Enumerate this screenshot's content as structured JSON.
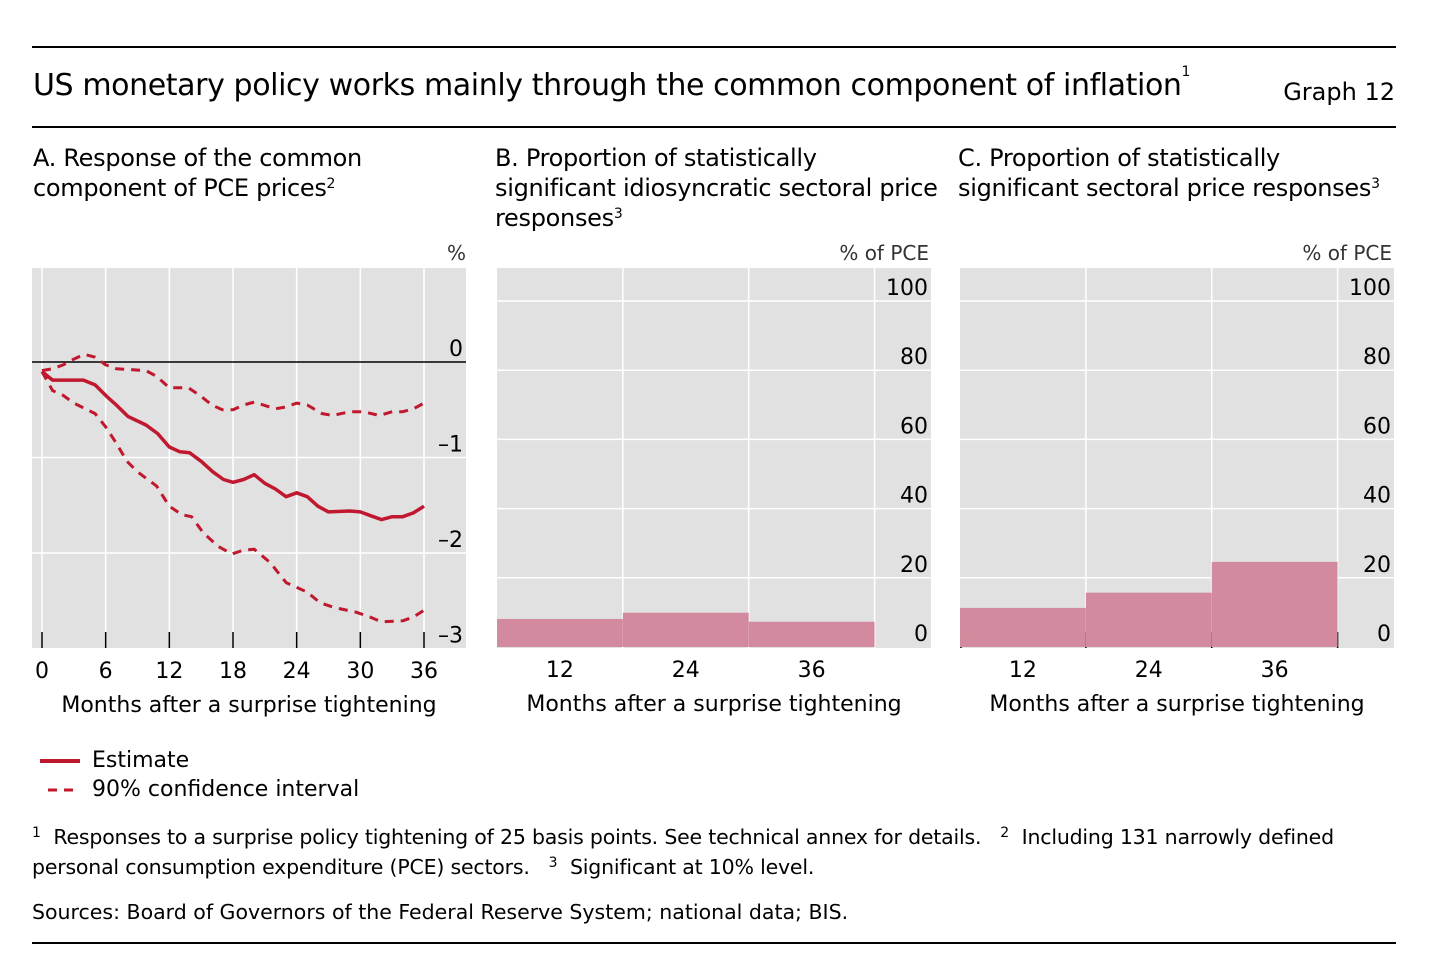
{
  "header": {
    "title": "US monetary policy works mainly through the common component of inflation",
    "title_note": "1",
    "graph_number": "Graph 12"
  },
  "legend": {
    "estimate": "Estimate",
    "ci": "90% confidence interval"
  },
  "footnotes": {
    "n1_mark": "1",
    "n1": "Responses to a surprise policy tightening of 25 basis points. See technical annex for details.",
    "n2_mark": "2",
    "n2": "Including 131 narrowly defined personal consumption expenditure (PCE) sectors.",
    "n3_mark": "3",
    "n3": "Significant at 10% level."
  },
  "sources": "Sources: Board of Governors of the Federal Reserve System; national data; BIS.",
  "colors": {
    "line": "#c0182e",
    "bar": "#d48a9e",
    "plot_bg": "#e1e1e1",
    "grid": "#ffffff"
  },
  "chart_data": [
    {
      "type": "line",
      "title": "A. Response of the common component of PCE prices",
      "title_note": "2",
      "unit": "%",
      "xlabel": "Months after a surprise tightening",
      "xlim": [
        0,
        36
      ],
      "ylim": [
        -3,
        1
      ],
      "xticks": [
        0,
        6,
        12,
        18,
        24,
        30,
        36
      ],
      "yticks": [
        0,
        -1,
        -2,
        -3
      ],
      "ytick_labels": [
        "0",
        "–1",
        "–2",
        "–3"
      ],
      "grid": true,
      "legend_position": "bottom-left",
      "series": [
        {
          "name": "Estimate",
          "style": "solid",
          "points": [
            [
              0,
              -0.1
            ],
            [
              1,
              -0.19
            ],
            [
              3.9,
              -0.19
            ],
            [
              5,
              -0.24
            ],
            [
              6.1,
              -0.36
            ],
            [
              7,
              -0.45
            ],
            [
              8.1,
              -0.57
            ],
            [
              9.8,
              -0.66
            ],
            [
              10.9,
              -0.75
            ],
            [
              12,
              -0.89
            ],
            [
              13,
              -0.94
            ],
            [
              13.9,
              -0.95
            ],
            [
              15,
              -1.04
            ],
            [
              16.1,
              -1.15
            ],
            [
              17.1,
              -1.23
            ],
            [
              18,
              -1.26
            ],
            [
              19,
              -1.23
            ],
            [
              20,
              -1.18
            ],
            [
              21,
              -1.27
            ],
            [
              22,
              -1.33
            ],
            [
              23,
              -1.41
            ],
            [
              24,
              -1.37
            ],
            [
              25,
              -1.41
            ],
            [
              26,
              -1.51
            ],
            [
              27,
              -1.57
            ],
            [
              29,
              -1.56
            ],
            [
              30,
              -1.57
            ],
            [
              31,
              -1.61
            ],
            [
              32,
              -1.65
            ],
            [
              33,
              -1.62
            ],
            [
              34,
              -1.62
            ],
            [
              35,
              -1.58
            ],
            [
              36,
              -1.51
            ]
          ]
        },
        {
          "name": "90% confidence interval",
          "style": "dashed",
          "points": [
            [
              0,
              -0.09
            ],
            [
              1,
              -0.07
            ],
            [
              2,
              -0.03
            ],
            [
              3,
              0.03
            ],
            [
              4,
              0.08
            ],
            [
              5,
              0.05
            ],
            [
              6,
              -0.03
            ],
            [
              7,
              -0.07
            ],
            [
              9.8,
              -0.09
            ],
            [
              10.8,
              -0.15
            ],
            [
              12,
              -0.27
            ],
            [
              13.8,
              -0.27
            ],
            [
              15,
              -0.36
            ],
            [
              16,
              -0.45
            ],
            [
              17,
              -0.5
            ],
            [
              18,
              -0.5
            ],
            [
              19,
              -0.45
            ],
            [
              20,
              -0.42
            ],
            [
              22,
              -0.49
            ],
            [
              23,
              -0.47
            ],
            [
              24,
              -0.43
            ],
            [
              25,
              -0.45
            ],
            [
              26.4,
              -0.54
            ],
            [
              27.4,
              -0.56
            ],
            [
              29,
              -0.52
            ],
            [
              30.3,
              -0.52
            ],
            [
              31.8,
              -0.56
            ],
            [
              33,
              -0.52
            ],
            [
              34,
              -0.52
            ],
            [
              35,
              -0.49
            ],
            [
              36,
              -0.43
            ]
          ]
        },
        {
          "name": "90% confidence interval",
          "style": "dashed",
          "points": [
            [
              0,
              -0.1
            ],
            [
              1,
              -0.3
            ],
            [
              2,
              -0.35
            ],
            [
              3,
              -0.43
            ],
            [
              5,
              -0.54
            ],
            [
              6,
              -0.68
            ],
            [
              7,
              -0.85
            ],
            [
              8,
              -1.04
            ],
            [
              9,
              -1.15
            ],
            [
              10.8,
              -1.3
            ],
            [
              12,
              -1.51
            ],
            [
              13.2,
              -1.6
            ],
            [
              14.1,
              -1.62
            ],
            [
              15.2,
              -1.79
            ],
            [
              16.6,
              -1.93
            ],
            [
              17.9,
              -2.01
            ],
            [
              19,
              -1.97
            ],
            [
              20,
              -1.96
            ],
            [
              21.5,
              -2.1
            ],
            [
              23,
              -2.31
            ],
            [
              24,
              -2.36
            ],
            [
              25,
              -2.41
            ],
            [
              26.2,
              -2.52
            ],
            [
              27.5,
              -2.57
            ],
            [
              29.6,
              -2.62
            ],
            [
              30.9,
              -2.67
            ],
            [
              32,
              -2.72
            ],
            [
              34,
              -2.71
            ],
            [
              35,
              -2.67
            ],
            [
              36,
              -2.6
            ]
          ]
        }
      ]
    },
    {
      "type": "bar",
      "title": "B. Proportion of statistically significant idiosyncratic sectoral price responses",
      "title_note": "3",
      "unit": "% of PCE",
      "xlabel": "Months after a surprise tightening",
      "categories": [
        "12",
        "24",
        "36"
      ],
      "values": [
        8.1,
        9.9,
        7.3
      ],
      "ylim": [
        0,
        110
      ],
      "yticks": [
        0,
        20,
        40,
        60,
        80,
        100
      ],
      "grid": true
    },
    {
      "type": "bar",
      "title": "C. Proportion of statistically significant sectoral price responses",
      "title_note": "3",
      "unit": "% of PCE",
      "xlabel": "Months after a surprise tightening",
      "categories": [
        "12",
        "24",
        "36"
      ],
      "values": [
        11.3,
        15.7,
        24.6
      ],
      "ylim": [
        0,
        110
      ],
      "yticks": [
        0,
        20,
        40,
        60,
        80,
        100
      ],
      "grid": true
    }
  ]
}
